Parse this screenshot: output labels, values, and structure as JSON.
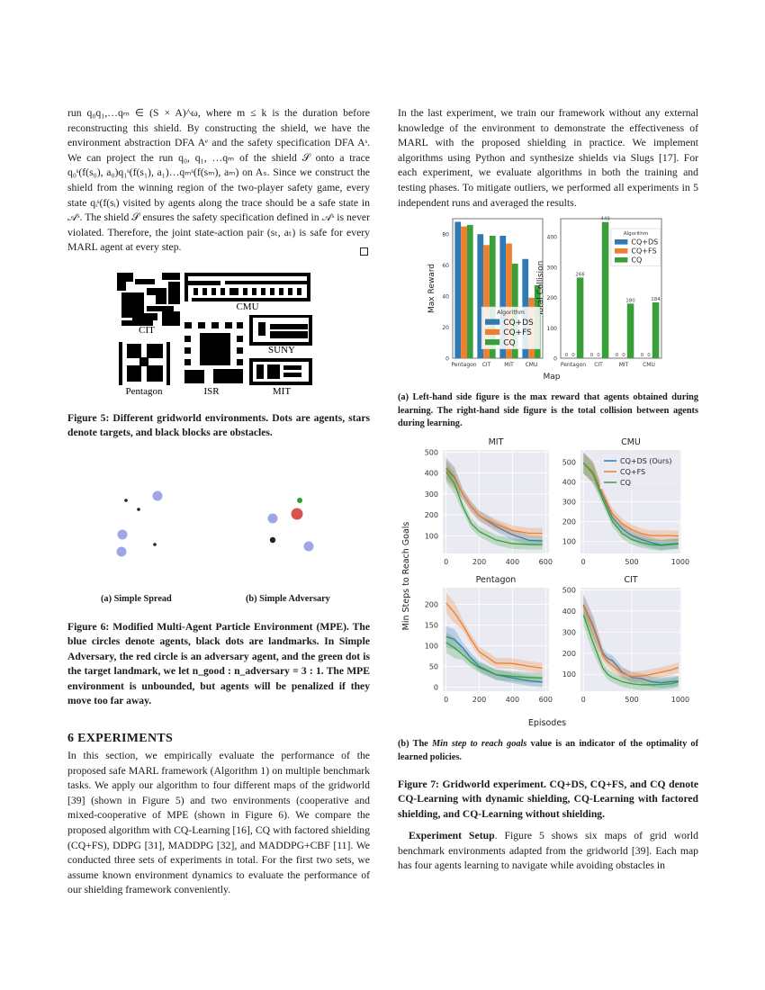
{
  "left": {
    "proof_paragraph": "run q₀q₁,…qₘ ∈ (S × A)^ω, where m ≤ k is the duration before reconstructing this shield. By constructing the shield, we have the environment abstraction DFA Aᵉ and the safety specification DFA Aˢ. We can project the run q₀, q₁, …qₘ of the shield 𝒮 onto a trace q₀ˢ(f(s₀), a₀)q₁ˢ(f(s₁), a₁)…qₘˢ(f(sₘ), aₘ) on Aₛ. Since we construct the shield from the winning region of the two-player safety game, every state qᵢˢ(f(sᵢ) visited by agents along the trace should be a safe state in 𝒜ˢ. The shield 𝒮 ensures the safety specification defined in 𝒜ˢ is never violated. Therefore, the joint state-action pair (sₜ, aₜ) is safe for every MARL agent at every step.",
    "fig5": {
      "map_labels": {
        "cit": "CIT",
        "cmu": "CMU",
        "suny": "SUNY",
        "pentagon": "Pentagon",
        "isr": "ISR",
        "mit": "MIT"
      },
      "caption": "Figure 5: Different gridworld environments. Dots are agents, stars denote targets, and black blocks are obstacles."
    },
    "fig6": {
      "sub_a": "(a) Simple Spread",
      "sub_b": "(b) Simple Adversary",
      "caption": "Figure 6: Modified Multi-Agent Particle Environment (MPE). The blue circles denote agents, black dots are landmarks. In Simple Adversary, the red circle is an adversary agent, and the green dot is the target landmark, we let n_good : n_adversary = 3 : 1. The MPE environment is unbounded, but agents will be penalized if they move too far away.",
      "colors": {
        "agent": "#9fa6e6",
        "landmark": "#222222",
        "adversary": "#d9534f",
        "target": "#2ca02c"
      }
    },
    "section_heading": "6   EXPERIMENTS",
    "section_paragraph": "In this section, we empirically evaluate the performance of the proposed safe MARL framework (Algorithm 1) on multiple benchmark tasks. We apply our algorithm to four different maps of the gridworld [39] (shown in Figure 5) and two environments (cooperative and mixed-cooperative of MPE (shown in Figure 6). We compare the proposed algorithm with CQ-Learning [16], CQ with factored shielding (CQ+FS), DDPG [31], MADDPG [32], and MADDPG+CBF [11]. We conducted three sets of experiments in total. For the first two sets, we assume known environment dynamics to evaluate the performance of our shielding framework conveniently."
  },
  "right": {
    "intro_paragraph": "In the last experiment, we train our framework without any external knowledge of the environment to demonstrate the effectiveness of MARL with the proposed shielding in practice. We implement algorithms using Python and synthesize shields via Slugs [17]. For each experiment, we evaluate algorithms in both the training and testing phases. To mitigate outliers, we performed all experiments in 5 independent runs and averaged the results.",
    "fig7a_caption": "(a) Left-hand side figure is the max reward that agents obtained during learning. The right-hand side figure is the total collision between agents during learning.",
    "fig7b_caption_pre": "(b) The ",
    "fig7b_caption_em": "Min step to reach goals",
    "fig7b_caption_post": " value is an indicator of the optimality of learned policies.",
    "fig7_caption": "Figure 7: Gridworld experiment. CQ+DS, CQ+FS, and CQ denote CQ-Learning with dynamic shielding, CQ-Learning with factored shielding, and CQ-Learning without shielding.",
    "setup_lead": "Experiment Setup",
    "setup_paragraph": ". Figure 5 shows six maps of grid world benchmark environments adapted from the gridworld [39]. Each map has four agents learning to navigate while avoiding obstacles in"
  },
  "colors": {
    "cqds": "#2f79b5",
    "cqfs": "#ee7f2d",
    "cq": "#3a9e3a",
    "plot_bg": "#eaeaf2"
  },
  "chart_data": [
    {
      "id": "max_reward",
      "type": "bar",
      "xlabel": "Map",
      "ylabel": "Max Reward",
      "ylim": [
        0,
        90
      ],
      "yticks": [
        0,
        20,
        40,
        60,
        80
      ],
      "categories": [
        "Pentagon",
        "CIT",
        "MIT",
        "CMU"
      ],
      "legend_title": "Algorithm",
      "legend": "bottom-right",
      "series": [
        {
          "name": "CQ+DS",
          "values": [
            88,
            80,
            79,
            64
          ]
        },
        {
          "name": "CQ+FS",
          "values": [
            85,
            73,
            74,
            39
          ]
        },
        {
          "name": "CQ",
          "values": [
            86,
            79,
            61,
            47
          ]
        }
      ]
    },
    {
      "id": "total_collision",
      "type": "bar",
      "xlabel": "",
      "ylabel": "Total Collision",
      "ylim": [
        0,
        460
      ],
      "yticks": [
        0,
        100,
        200,
        300,
        400
      ],
      "categories": [
        "Pentagon",
        "CIT",
        "MIT",
        "CMU"
      ],
      "legend_title": "Algorithm",
      "legend": "top-right",
      "series": [
        {
          "name": "CQ+DS",
          "values": [
            0,
            0,
            0,
            0
          ],
          "labels": [
            "0",
            "0",
            "0",
            "0"
          ]
        },
        {
          "name": "CQ+FS",
          "values": [
            0,
            0,
            0,
            0
          ],
          "labels": [
            "0",
            "0",
            "0",
            "0"
          ]
        },
        {
          "name": "CQ",
          "values": [
            266,
            449,
            180,
            184
          ],
          "labels": [
            "266",
            "449",
            "180",
            "184"
          ]
        }
      ]
    },
    {
      "id": "mit",
      "type": "line",
      "title": "MIT",
      "xlim": [
        -20,
        620
      ],
      "ylim": [
        15,
        510
      ],
      "xticks": [
        0,
        200,
        400,
        600
      ],
      "yticks": [
        100,
        200,
        300,
        400,
        500
      ],
      "grid": true,
      "x": [
        0,
        50,
        100,
        150,
        200,
        300,
        400,
        500,
        580
      ],
      "series": [
        {
          "name": "CQ+DS (Ours)",
          "values": [
            425,
            380,
            300,
            240,
            195,
            145,
            105,
            78,
            75
          ]
        },
        {
          "name": "CQ+FS",
          "values": [
            415,
            375,
            300,
            240,
            195,
            155,
            125,
            112,
            112
          ]
        },
        {
          "name": "CQ",
          "values": [
            405,
            350,
            240,
            160,
            120,
            80,
            62,
            58,
            58
          ]
        }
      ]
    },
    {
      "id": "cmu",
      "type": "line",
      "title": "CMU",
      "xlim": [
        -30,
        1010
      ],
      "ylim": [
        40,
        560
      ],
      "xticks": [
        0,
        500,
        1000
      ],
      "yticks": [
        100,
        200,
        300,
        400,
        500
      ],
      "grid": true,
      "legend": "top-right",
      "x": [
        0,
        100,
        200,
        300,
        400,
        500,
        600,
        700,
        800,
        900,
        980
      ],
      "series": [
        {
          "name": "CQ+DS (Ours)",
          "values": [
            495,
            450,
            330,
            220,
            165,
            130,
            110,
            95,
            83,
            88,
            90
          ]
        },
        {
          "name": "CQ+FS",
          "values": [
            495,
            450,
            340,
            240,
            190,
            160,
            140,
            130,
            130,
            130,
            128
          ]
        },
        {
          "name": "CQ",
          "values": [
            495,
            440,
            310,
            200,
            140,
            110,
            95,
            85,
            80,
            85,
            88
          ]
        }
      ]
    },
    {
      "id": "pentagon",
      "type": "line",
      "title": "Pentagon",
      "xlim": [
        -20,
        620
      ],
      "ylim": [
        -10,
        240
      ],
      "xticks": [
        0,
        200,
        400,
        600
      ],
      "yticks": [
        0,
        50,
        100,
        150,
        200
      ],
      "grid": true,
      "x": [
        0,
        50,
        100,
        150,
        200,
        300,
        400,
        500,
        580
      ],
      "series": [
        {
          "name": "CQ+DS (Ours)",
          "values": [
            122,
            115,
            95,
            70,
            50,
            30,
            22,
            15,
            12
          ]
        },
        {
          "name": "CQ+FS",
          "values": [
            203,
            180,
            150,
            115,
            85,
            58,
            57,
            50,
            46
          ]
        },
        {
          "name": "CQ",
          "values": [
            108,
            95,
            78,
            60,
            47,
            30,
            26,
            23,
            22
          ]
        }
      ]
    },
    {
      "id": "cit",
      "type": "line",
      "title": "CIT",
      "xlim": [
        -30,
        1010
      ],
      "ylim": [
        20,
        510
      ],
      "xticks": [
        0,
        500,
        1000
      ],
      "yticks": [
        100,
        200,
        300,
        400,
        500
      ],
      "grid": true,
      "x": [
        0,
        100,
        200,
        250,
        300,
        400,
        500,
        600,
        700,
        800,
        900,
        980
      ],
      "series": [
        {
          "name": "CQ+DS (Ours)",
          "values": [
            430,
            330,
            200,
            175,
            165,
            110,
            85,
            80,
            65,
            60,
            65,
            68
          ]
        },
        {
          "name": "CQ+FS",
          "values": [
            425,
            320,
            190,
            160,
            140,
            105,
            90,
            92,
            100,
            110,
            120,
            132
          ]
        },
        {
          "name": "CQ",
          "values": [
            380,
            250,
            130,
            100,
            85,
            65,
            55,
            50,
            50,
            52,
            55,
            65
          ]
        }
      ]
    }
  ],
  "line_charts_shared": {
    "ylabel": "Min Steps to Reach Goals",
    "xlabel": "Episodes"
  }
}
